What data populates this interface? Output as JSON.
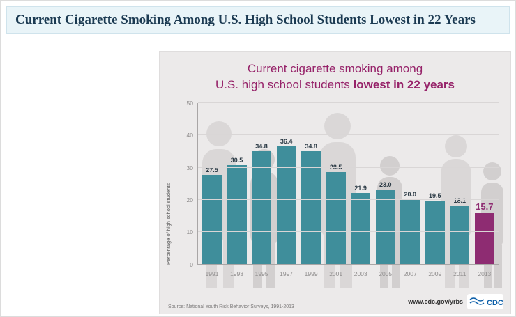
{
  "header": {
    "title": "Current Cigarette Smoking Among U.S. High School Students Lowest in 22 Years"
  },
  "infographic": {
    "title_line1": "Current cigarette smoking among",
    "title_line2_regular": "U.S. high school students ",
    "title_line2_bold": "lowest in 22 years",
    "source": "Source: National Youth Risk Behavior Surveys, 1991-2013",
    "website": "www.cdc.gov/yrbs",
    "logo_text": "CDC"
  },
  "colors": {
    "bar": "#3f8e9b",
    "highlight": "#8e2c72",
    "title": "#962269",
    "value_label": "#2c3b46"
  },
  "chart_data": {
    "type": "bar",
    "categories": [
      "1991",
      "1993",
      "1995",
      "1997",
      "1999",
      "2001",
      "2003",
      "2005",
      "2007",
      "2009",
      "2011",
      "2013"
    ],
    "values": [
      27.5,
      30.5,
      34.8,
      36.4,
      34.8,
      28.5,
      21.9,
      23.0,
      20.0,
      19.5,
      18.1,
      15.7
    ],
    "title": "Current cigarette smoking among U.S. high school students lowest in 22 years",
    "xlabel": "",
    "ylabel": "Percentage of high school students",
    "ylim": [
      0,
      50
    ],
    "yticks": [
      0,
      10,
      20,
      30,
      40,
      50
    ],
    "highlight_index": 11,
    "legend": false,
    "grid": true
  }
}
